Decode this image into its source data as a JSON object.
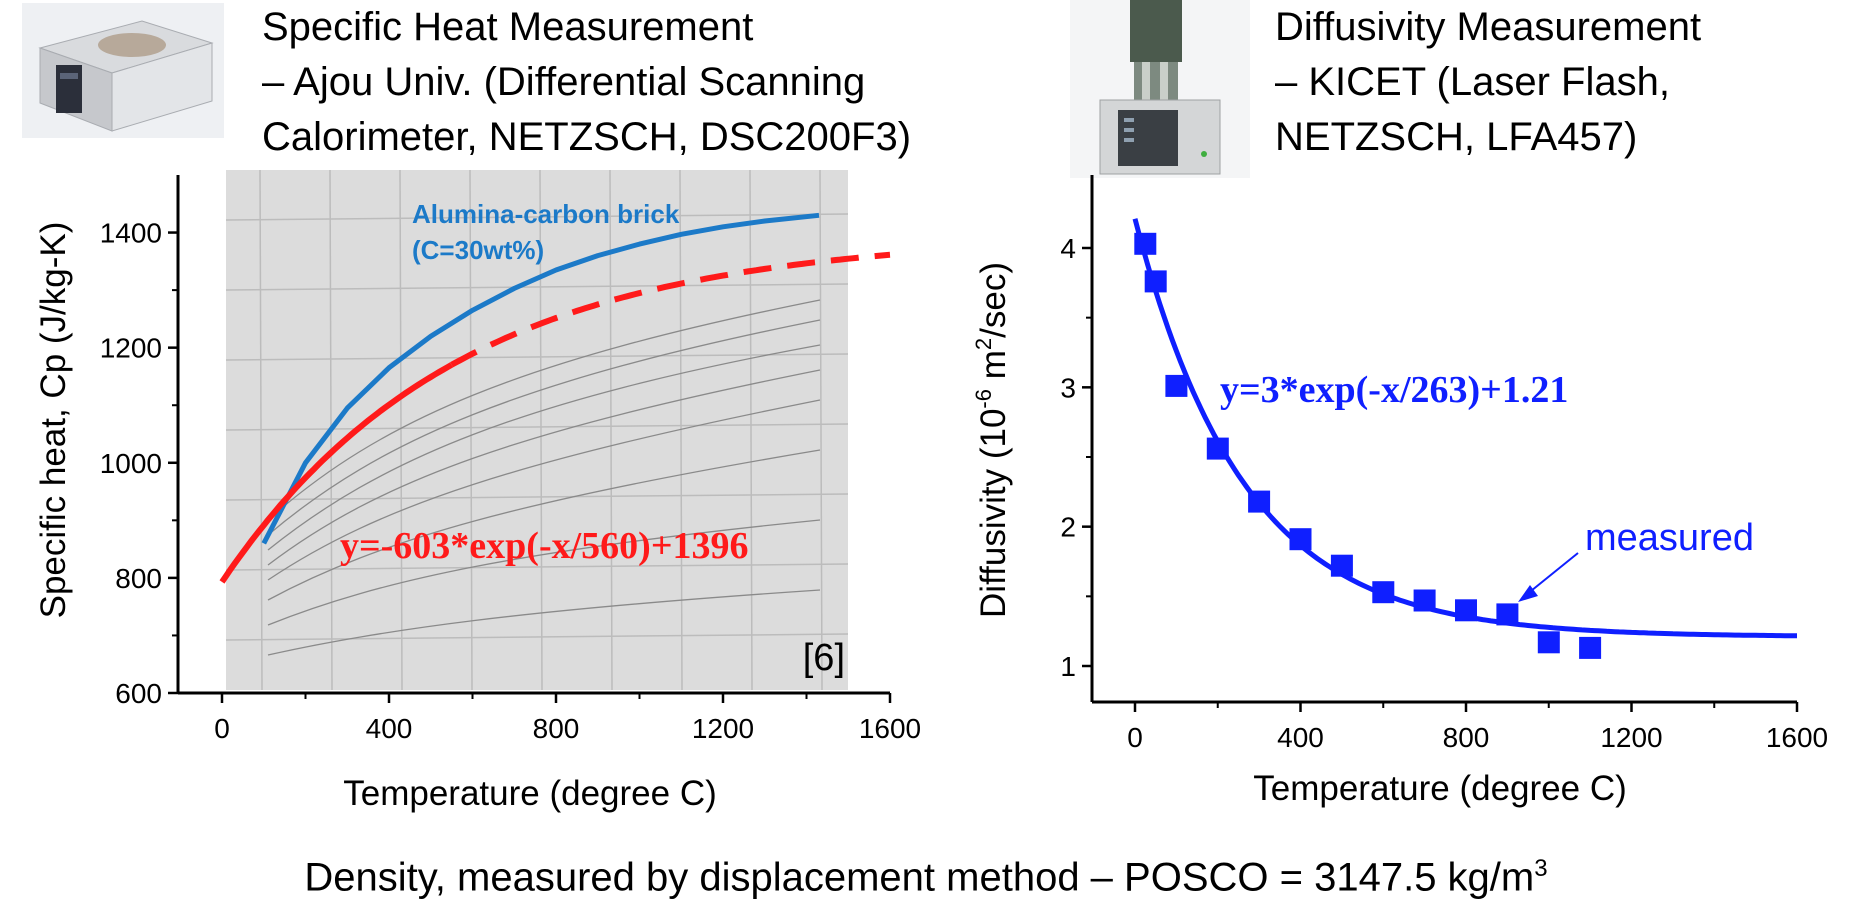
{
  "header_left": {
    "lines": [
      "Specific Heat Measurement",
      "– Ajou Univ. (Differential Scanning",
      "Calorimeter, NETZSCH, DSC200F3)"
    ]
  },
  "header_right": {
    "lines": [
      "Diffusivity Measurement",
      "– KICET (Laser Flash,",
      "NETZSCH, LFA457)"
    ]
  },
  "footer": {
    "text": "Density, measured by displacement method – POSCO = 3147.5 kg/m",
    "superscript": "3"
  },
  "colors": {
    "red": "#ff1a1a",
    "blue": "#1c7ac8",
    "marker_blue": "#0f1fff"
  },
  "chart_data": [
    {
      "type": "line",
      "title": "",
      "xlabel": "Temperature (degree C)",
      "ylabel": "Specific heat, Cp (J/kg-K)",
      "xlim": [
        -100,
        1600
      ],
      "ylim": [
        600,
        1500
      ],
      "xticks": [
        0,
        400,
        800,
        1200,
        1600
      ],
      "yticks": [
        600,
        800,
        1000,
        1200,
        1400
      ],
      "annotations": {
        "brick_label_1": "Alumina-carbon brick",
        "brick_label_2": "(C=30wt%)",
        "formula": "y=-603*exp(-x/560)+1396",
        "reference": "[6]"
      },
      "series": [
        {
          "name": "Alumina-carbon brick (C=30wt%)",
          "color": "#1c7ac8",
          "x": [
            100,
            200,
            300,
            400,
            500,
            600,
            700,
            800,
            900,
            1000,
            1100,
            1200,
            1300,
            1430
          ],
          "y": [
            860,
            1000,
            1095,
            1165,
            1220,
            1265,
            1303,
            1335,
            1360,
            1380,
            1397,
            1410,
            1420,
            1430
          ]
        },
        {
          "name": "y=-603*exp(-x/560)+1396",
          "color": "#ff1a1a",
          "style": "solid-then-dashed",
          "solid_until": 550,
          "equation": {
            "a": -603,
            "tau": 560,
            "c": 1396
          },
          "x_range": [
            0,
            1600
          ]
        }
      ]
    },
    {
      "type": "scatter",
      "title": "",
      "xlabel": "Temperature (degree C)",
      "ylabel_prefix": "Diffusivity (10",
      "ylabel_exp1": "-6",
      "ylabel_mid": " m",
      "ylabel_exp2": "2",
      "ylabel_suffix": "/sec)",
      "xlim": [
        -100,
        1600
      ],
      "ylim": [
        0.8,
        4.5
      ],
      "xticks": [
        0,
        400,
        800,
        1200,
        1600
      ],
      "yticks": [
        1,
        2,
        3,
        4
      ],
      "annotations": {
        "formula": "y=3*exp(-x/263)+1.21",
        "measured_label": "measured"
      },
      "series": [
        {
          "name": "measured",
          "color": "#0f1fff",
          "x": [
            25,
            50,
            100,
            200,
            300,
            400,
            500,
            600,
            700,
            800,
            900,
            1000,
            1100
          ],
          "y": [
            4.03,
            3.76,
            3.01,
            2.56,
            2.18,
            1.91,
            1.72,
            1.53,
            1.47,
            1.4,
            1.37,
            1.17,
            1.13
          ]
        },
        {
          "name": "fit y=3*exp(-x/263)+1.21",
          "color": "#0f1fff",
          "equation": {
            "a": 3,
            "tau": 263,
            "c": 1.21
          },
          "x_range": [
            0,
            1600
          ]
        }
      ]
    }
  ]
}
